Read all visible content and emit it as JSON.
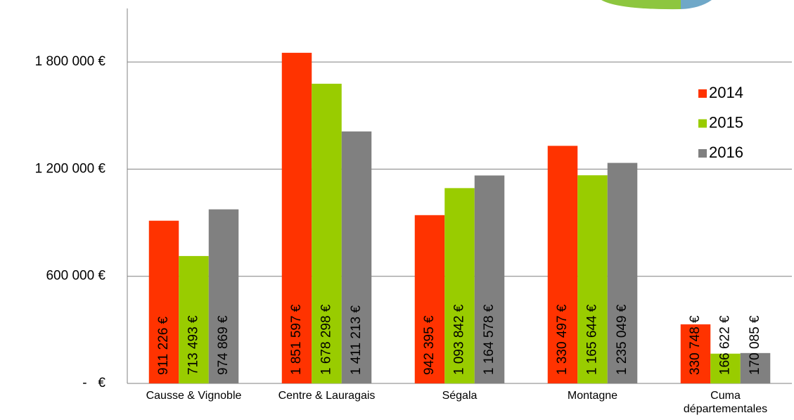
{
  "chart_data": {
    "type": "bar",
    "categories": [
      "Causse & Vignoble",
      "Centre & Lauragais",
      "Ségala",
      "Montagne",
      "Cuma départementales"
    ],
    "series": [
      {
        "name": "2014",
        "color": "#ff3300",
        "values": [
          911226,
          1851597,
          942395,
          1330497,
          330748
        ],
        "value_labels": [
          "911 226 €",
          "1 851 597 €",
          "942 395 €",
          "1 330 497 €",
          "330 748 €"
        ]
      },
      {
        "name": "2015",
        "color": "#99cc00",
        "values": [
          713493,
          1678298,
          1093842,
          1165644,
          166622
        ],
        "value_labels": [
          "713 493 €",
          "1 678 298 €",
          "1 093 842 €",
          "1 165 644 €",
          "166 622 €"
        ]
      },
      {
        "name": "2016",
        "color": "#808080",
        "values": [
          974869,
          1411213,
          1164578,
          1235049,
          170085
        ],
        "value_labels": [
          "974 869 €",
          "1 411 213 €",
          "1 164 578 €",
          "1 235 049 €",
          "170 085 €"
        ]
      }
    ],
    "ylim": [
      0,
      2100000
    ],
    "yticks": [
      {
        "value": 0,
        "label": "-   €"
      },
      {
        "value": 600000,
        "label": "600 000 €"
      },
      {
        "value": 1200000,
        "label": "1 200 000 €"
      },
      {
        "value": 1800000,
        "label": "1 800 000 €"
      }
    ],
    "grid": true,
    "legend": "upper right"
  }
}
